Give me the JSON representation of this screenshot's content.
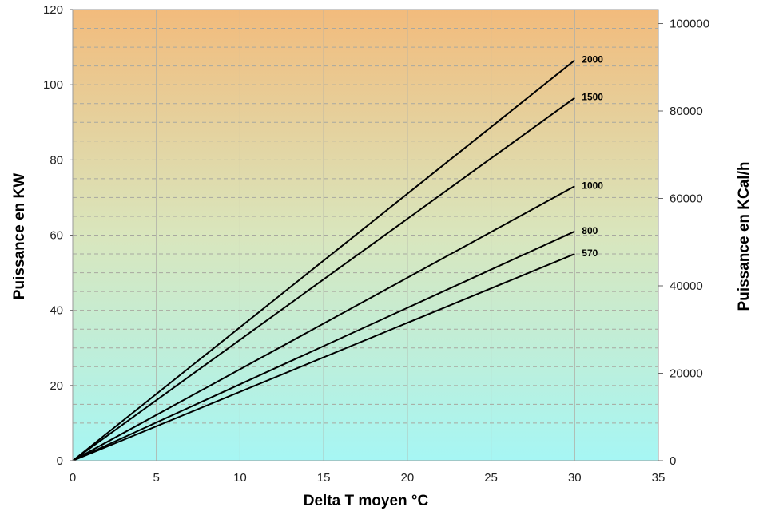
{
  "chart_data": {
    "type": "line",
    "xlabel": "Delta T moyen °C",
    "ylabel": "Puissance en KW",
    "y2label": "Puissance en KCal/h",
    "xlim": [
      0,
      35
    ],
    "ylim": [
      0,
      120
    ],
    "y2lim": [
      0,
      103200
    ],
    "x_ticks": [
      0,
      5,
      10,
      15,
      20,
      25,
      30,
      35
    ],
    "y_ticks": [
      0,
      20,
      40,
      60,
      80,
      100,
      120
    ],
    "y2_ticks": [
      0,
      20000,
      40000,
      60000,
      80000,
      100000
    ],
    "grid": true,
    "background_gradient": {
      "top": "#f2bb7c",
      "bottom": "#a6f6f4"
    },
    "line_color": "#000000",
    "series": [
      {
        "name": "2000",
        "x": [
          0,
          30
        ],
        "y": [
          0,
          106.5
        ]
      },
      {
        "name": "1500",
        "x": [
          0,
          30
        ],
        "y": [
          0,
          96.5
        ]
      },
      {
        "name": "1000",
        "x": [
          0,
          30
        ],
        "y": [
          0,
          73
        ]
      },
      {
        "name": "800",
        "x": [
          0,
          30
        ],
        "y": [
          0,
          61
        ]
      },
      {
        "name": "570",
        "x": [
          0,
          30
        ],
        "y": [
          0,
          55
        ]
      }
    ]
  }
}
